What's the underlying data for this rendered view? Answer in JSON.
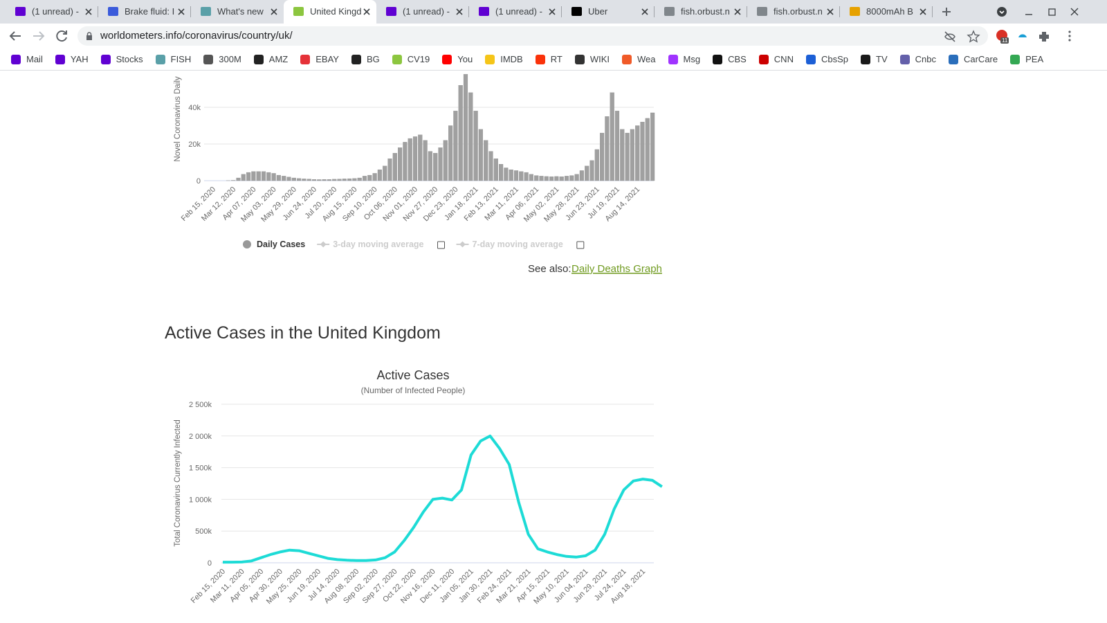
{
  "tabs": [
    {
      "title": "(1 unread) -",
      "icon": "#6001d2"
    },
    {
      "title": "Brake fluid: I",
      "icon": "#3b5bdb"
    },
    {
      "title": "What's new",
      "icon": "#5aa0a8"
    },
    {
      "title": "United Kingd",
      "icon": "#8cc63f"
    },
    {
      "title": "(1 unread) -",
      "icon": "#6001d2"
    },
    {
      "title": "(1 unread) -",
      "icon": "#6001d2"
    },
    {
      "title": "Uber",
      "icon": "#000000"
    },
    {
      "title": "fish.orbust.n",
      "icon": "#80868b"
    },
    {
      "title": "fish.orbust.n",
      "icon": "#80868b"
    },
    {
      "title": "8000mAh B",
      "icon": "#e6a100"
    }
  ],
  "active_tab": 3,
  "url": "worldometers.info/coronavirus/country/uk/",
  "extension_badge": "11",
  "bookmarks": [
    {
      "label": "Mail",
      "icon": "#6001d2"
    },
    {
      "label": "YAH",
      "icon": "#6001d2"
    },
    {
      "label": "Stocks",
      "icon": "#6001d2"
    },
    {
      "label": "FISH",
      "icon": "#5aa0a8"
    },
    {
      "label": "300M",
      "icon": "#555555"
    },
    {
      "label": "AMZ",
      "icon": "#222222"
    },
    {
      "label": "EBAY",
      "icon": "#e53238"
    },
    {
      "label": "BG",
      "icon": "#222222"
    },
    {
      "label": "CV19",
      "icon": "#8cc63f"
    },
    {
      "label": "You",
      "icon": "#ff0000"
    },
    {
      "label": "IMDB",
      "icon": "#f5c518"
    },
    {
      "label": "RT",
      "icon": "#fa320a"
    },
    {
      "label": "WIKI",
      "icon": "#333333"
    },
    {
      "label": "Wea",
      "icon": "#f05a28"
    },
    {
      "label": "Msg",
      "icon": "#a033ff"
    },
    {
      "label": "CBS",
      "icon": "#111111"
    },
    {
      "label": "CNN",
      "icon": "#cc0000"
    },
    {
      "label": "CbsSp",
      "icon": "#1c5fd6"
    },
    {
      "label": "TV",
      "icon": "#1a1a1a"
    },
    {
      "label": "Cnbc",
      "icon": "#6460aa"
    },
    {
      "label": "CarCare",
      "icon": "#2a6ebb"
    },
    {
      "label": "PEA",
      "icon": "#34a853"
    }
  ],
  "see_also": "See also: ",
  "see_also_link": "Daily Deaths Graph",
  "section_title": "Active Cases in the United Kingdom",
  "chart_data": [
    {
      "type": "bar",
      "y_label": "Novel Coronavirus Daily",
      "color": "#a0a0a0",
      "ylim": [
        0,
        60000
      ],
      "yticks": [
        0,
        {
          "value": 20000,
          "label": "20k"
        },
        {
          "value": 40000,
          "label": "40k"
        }
      ],
      "grid": true,
      "legend_items": [
        {
          "name": "Daily Cases",
          "enabled": true
        },
        {
          "name": "3-day moving average",
          "enabled": false
        },
        {
          "name": "7-day moving average",
          "enabled": false
        }
      ],
      "categories": [
        "Feb 15, 2020",
        null,
        null,
        null,
        "Mar 12, 2020",
        null,
        null,
        null,
        "Apr 07, 2020",
        null,
        null,
        null,
        "May 03, 2020",
        null,
        null,
        null,
        "May 29, 2020",
        null,
        null,
        null,
        "Jun 24, 2020",
        null,
        null,
        null,
        "Jul 20, 2020",
        null,
        null,
        null,
        "Aug 15, 2020",
        null,
        null,
        null,
        "Sep 10, 2020",
        null,
        null,
        null,
        "Oct 06, 2020",
        null,
        null,
        null,
        "Nov 01, 2020",
        null,
        null,
        null,
        "Nov 27, 2020",
        null,
        null,
        null,
        "Dec 23, 2020",
        null,
        null,
        null,
        "Jan 18, 2021",
        null,
        null,
        null,
        "Feb 13, 2021",
        null,
        null,
        null,
        "Mar 11, 2021",
        null,
        null,
        null,
        "Apr 06, 2021",
        null,
        null,
        null,
        "May 02, 2021",
        null,
        null,
        null,
        "May 28, 2021",
        null,
        null,
        null,
        "Jun 23, 2021",
        null,
        null,
        null,
        "Jul 19, 2021",
        null,
        null,
        null,
        "Aug 14, 2021",
        null,
        null,
        null
      ],
      "values": [
        0,
        0,
        0,
        50,
        200,
        1500,
        3500,
        4500,
        5000,
        5000,
        5000,
        4500,
        4000,
        3000,
        2500,
        2000,
        1500,
        1200,
        1000,
        900,
        700,
        600,
        700,
        700,
        800,
        900,
        1000,
        1100,
        1200,
        1500,
        2500,
        3000,
        4000,
        6000,
        8000,
        12000,
        15000,
        18000,
        21000,
        23000,
        24000,
        25000,
        22000,
        16000,
        15000,
        18000,
        22000,
        30000,
        38000,
        52000,
        58000,
        48000,
        38000,
        28000,
        22000,
        16000,
        12000,
        9000,
        7000,
        6000,
        5500,
        5000,
        4500,
        3500,
        2800,
        2500,
        2300,
        2200,
        2300,
        2200,
        2500,
        2800,
        3500,
        5500,
        8000,
        11000,
        17000,
        26000,
        35000,
        48000,
        38000,
        28000,
        26000,
        28000,
        30000,
        32000,
        34000,
        37000
      ]
    },
    {
      "type": "line",
      "title": "Active Cases",
      "subtitle": "(Number of Infected People)",
      "y_label": "Total Coronavirus Currently Infected",
      "color": "#1ddbd6",
      "ylim": [
        0,
        2500000
      ],
      "yticks": [
        {
          "value": 0,
          "label": "0"
        },
        {
          "value": 500000,
          "label": "500k"
        },
        {
          "value": 1000000,
          "label": "1 000k"
        },
        {
          "value": 1500000,
          "label": "1 500k"
        },
        {
          "value": 2000000,
          "label": "2 000k"
        },
        {
          "value": 2500000,
          "label": "2 500k"
        }
      ],
      "grid": true,
      "categories": [
        "Feb 15, 2020",
        null,
        "Mar 11, 2020",
        null,
        "Apr 05, 2020",
        null,
        "Apr 30, 2020",
        null,
        "May 25, 2020",
        null,
        "Jun 19, 2020",
        null,
        "Jul 14, 2020",
        null,
        "Aug 08, 2020",
        null,
        "Sep 02, 2020",
        null,
        "Sep 27, 2020",
        null,
        "Oct 22, 2020",
        null,
        "Nov 16, 2020",
        null,
        "Dec 11, 2020",
        null,
        "Jan 05, 2021",
        null,
        "Jan 30, 2021",
        null,
        "Feb 24, 2021",
        null,
        "Mar 21, 2021",
        null,
        "Apr 15, 2021",
        null,
        "May 10, 2021",
        null,
        "Jun 04, 2021",
        null,
        "Jun 29, 2021",
        null,
        "Jul 24, 2021",
        null,
        "Aug 18, 2021",
        null,
        null
      ],
      "values": [
        10000,
        10000,
        12000,
        30000,
        80000,
        130000,
        170000,
        200000,
        190000,
        150000,
        110000,
        70000,
        50000,
        40000,
        35000,
        35000,
        45000,
        80000,
        170000,
        350000,
        560000,
        800000,
        1000000,
        1020000,
        990000,
        1150000,
        1700000,
        1920000,
        2000000,
        1800000,
        1550000,
        950000,
        450000,
        220000,
        170000,
        130000,
        100000,
        90000,
        110000,
        200000,
        450000,
        850000,
        1150000,
        1290000,
        1320000,
        1300000,
        1200000
      ]
    }
  ]
}
